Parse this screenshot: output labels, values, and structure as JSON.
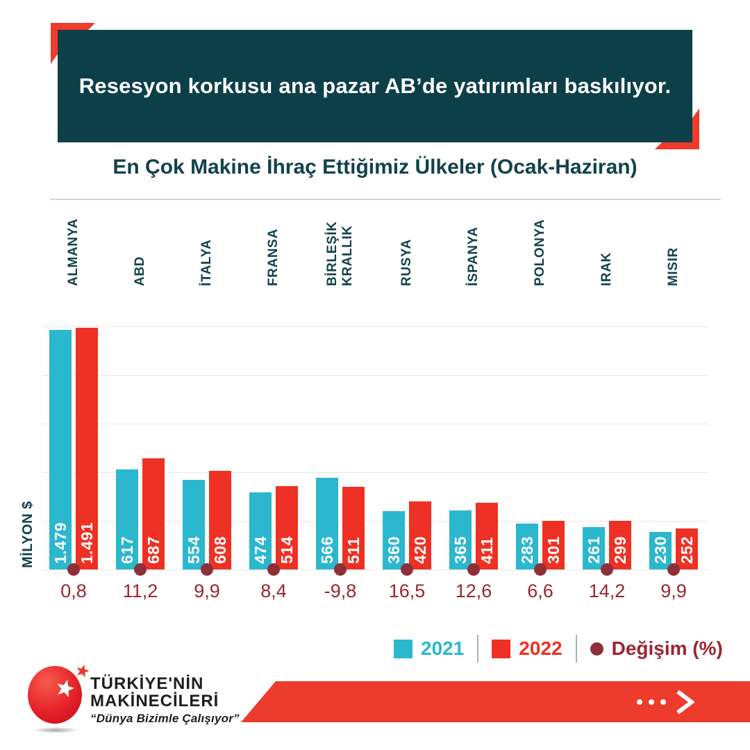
{
  "header": {
    "title": "Resesyon korkusu ana pazar AB’de yatırımları baskılıyor."
  },
  "subtitle": "En Çok Makine İhraç Ettiğimiz Ülkeler (Ocak-Haziran)",
  "chart_data": {
    "type": "bar",
    "title": "En Çok Makine İhraç Ettiğimiz Ülkeler (Ocak-Haziran)",
    "ylabel": "MİLYON $",
    "categories": [
      "ALMANYA",
      "ABD",
      "İTALYA",
      "FRANSA",
      "BİRLEŞİK KRALLIK",
      "RUSYA",
      "İSPANYA",
      "POLONYA",
      "IRAK",
      "MISIR"
    ],
    "series": [
      {
        "name": "2021",
        "color": "#2bb7ce",
        "values": [
          1479,
          617,
          554,
          474,
          566,
          360,
          365,
          283,
          261,
          230
        ]
      },
      {
        "name": "2022",
        "color": "#ee3124",
        "values": [
          1491,
          687,
          608,
          514,
          511,
          420,
          411,
          301,
          299,
          252
        ]
      }
    ],
    "change_series": {
      "name": "Değişim (%)",
      "color": "#9e2430",
      "marker_color": "#8e2f3a",
      "values": [
        "0,8",
        "11,2",
        "9,9",
        "8,4",
        "-9,8",
        "16,5",
        "12,6",
        "6,6",
        "14,2",
        "9,9"
      ]
    },
    "ylim": [
      0,
      1500
    ],
    "gridline_step": 300,
    "grid": true,
    "legend_position": "bottom-right"
  },
  "legend": {
    "items": [
      {
        "label": "2021",
        "color": "#2bb7ce",
        "swatch": "square"
      },
      {
        "label": "2022",
        "color": "#ee3124",
        "swatch": "square"
      },
      {
        "label": "Değişim (%)",
        "color": "#9e2430",
        "swatch": "circle",
        "swatch_color": "#8e2f3a"
      }
    ]
  },
  "footer": {
    "logo_line1": "TÜRKİYE'NİN",
    "logo_line2": "MAKİNECİLERİ",
    "tagline": "“Dünya Bizimle Çalışıyor”",
    "icons": [
      "star-icon",
      "ellipsis-icon",
      "chevron-right-icon"
    ],
    "banner_color": "#ed3b2c"
  },
  "colors": {
    "header_background": "#0d3f48",
    "accent_red": "#ed3b2c",
    "title_text": "#12424b",
    "gridline": "#e4e7e8"
  }
}
